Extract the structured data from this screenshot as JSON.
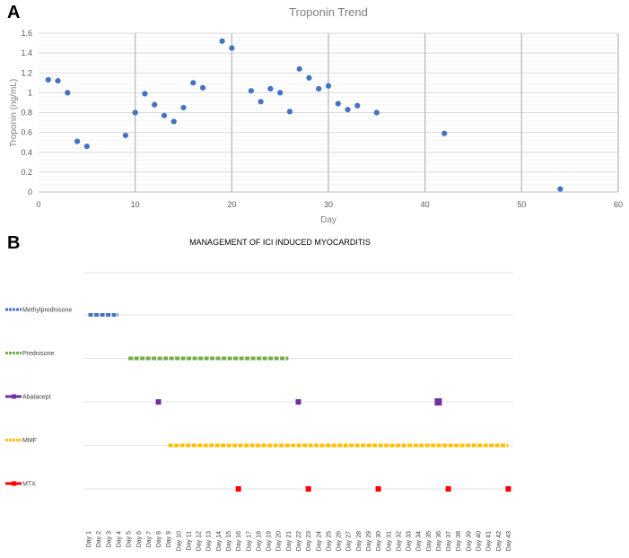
{
  "panels": {
    "a": "A",
    "b": "B"
  },
  "chart_data": [
    {
      "type": "scatter",
      "title": "Troponin Trend",
      "xlabel": "Day",
      "ylabel": "Troponin (ng/mL)",
      "xlim": [
        0,
        60
      ],
      "ylim": [
        0,
        1.6
      ],
      "xticks": [
        "0",
        "10",
        "20",
        "30",
        "40",
        "50",
        "60"
      ],
      "yticks": [
        "0",
        "0.2",
        "0.4",
        "0.6",
        "0.8",
        "1",
        "1.2",
        "1.4",
        "1.6"
      ],
      "grid": true,
      "color": "#4472c4",
      "points": [
        {
          "x": 1,
          "y": 1.13
        },
        {
          "x": 2,
          "y": 1.12
        },
        {
          "x": 3,
          "y": 1.0
        },
        {
          "x": 4,
          "y": 0.51
        },
        {
          "x": 5,
          "y": 0.46
        },
        {
          "x": 9,
          "y": 0.57
        },
        {
          "x": 10,
          "y": 0.8
        },
        {
          "x": 11,
          "y": 0.99
        },
        {
          "x": 12,
          "y": 0.88
        },
        {
          "x": 13,
          "y": 0.77
        },
        {
          "x": 14,
          "y": 0.71
        },
        {
          "x": 15,
          "y": 0.85
        },
        {
          "x": 16,
          "y": 1.1
        },
        {
          "x": 17,
          "y": 1.05
        },
        {
          "x": 19,
          "y": 1.52
        },
        {
          "x": 20,
          "y": 1.45
        },
        {
          "x": 22,
          "y": 1.02
        },
        {
          "x": 23,
          "y": 0.91
        },
        {
          "x": 24,
          "y": 1.04
        },
        {
          "x": 25,
          "y": 1.0
        },
        {
          "x": 26,
          "y": 0.81
        },
        {
          "x": 27,
          "y": 1.24
        },
        {
          "x": 28,
          "y": 1.15
        },
        {
          "x": 29,
          "y": 1.04
        },
        {
          "x": 30,
          "y": 1.07
        },
        {
          "x": 31,
          "y": 0.89
        },
        {
          "x": 32,
          "y": 0.83
        },
        {
          "x": 33,
          "y": 0.87
        },
        {
          "x": 35,
          "y": 0.8
        },
        {
          "x": 42,
          "y": 0.59
        },
        {
          "x": 54,
          "y": 0.03
        }
      ]
    },
    {
      "type": "timeline",
      "title": "MANAGEMENT OF ICI INDUCED MYOCARDITIS",
      "categories": [
        "Day 1",
        "Day 2",
        "Day 3",
        "Day 4",
        "Day 5",
        "Day 6",
        "Day 7",
        "Day 8",
        "Day 9",
        "Day 10",
        "Day 11",
        "Day 12",
        "Day 13",
        "Day 14",
        "Day 15",
        "Day 16",
        "Day 17",
        "Day 18",
        "Day 19",
        "Day 20",
        "Day 21",
        "Day 22",
        "Day 23",
        "Day 24",
        "Day 25",
        "Day 26",
        "Day 27",
        "Day 28",
        "Day 29",
        "Day 30",
        "Day 31",
        "Day 32",
        "Day 33",
        "Day 34",
        "Day 35",
        "Day 36",
        "Day 37",
        "Day 38",
        "Day 39",
        "Day 40",
        "Day 41",
        "Day 42",
        "Day 43"
      ],
      "series": [
        {
          "name": "Methylprednisone",
          "color": "#4472c4",
          "style": "continuous",
          "start_day": 1,
          "end_day": 4
        },
        {
          "name": "Prednisone",
          "color": "#70ad47",
          "style": "continuous",
          "start_day": 5,
          "end_day": 21
        },
        {
          "name": "Abatacept",
          "color": "#7030a0",
          "style": "points",
          "days": [
            8,
            22,
            36
          ]
        },
        {
          "name": "MMF",
          "color": "#ffc000",
          "style": "continuous",
          "start_day": 9,
          "end_day": 43
        },
        {
          "name": "MTX",
          "color": "#ff0000",
          "style": "points",
          "days": [
            16,
            23,
            30,
            37,
            43
          ]
        }
      ]
    }
  ]
}
